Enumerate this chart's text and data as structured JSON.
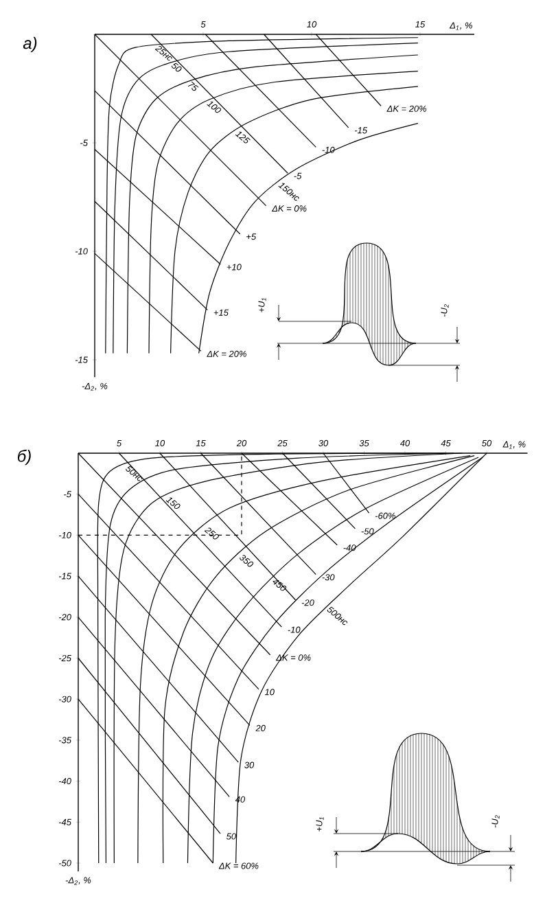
{
  "chart_data": [
    {
      "type": "line",
      "title": "а)",
      "xlabel": "Δ$_{1}$, %",
      "ylabel": "-Δ$_{2}$, %",
      "xlim": [
        0,
        17.5
      ],
      "ylim": [
        -15.8,
        0
      ],
      "xticks": [
        5,
        10,
        15
      ],
      "yticks": [
        -15,
        -10,
        -5
      ],
      "annotations": [
        "+U$_{1}$",
        "-U$_{2}$"
      ],
      "series": [
        {
          "name": "25нс",
          "color": "#000000",
          "x": [
            0.5,
            0.57,
            0.68,
            1.1,
            1.9,
            6.2,
            14.9
          ],
          "values": [
            -14.7,
            -6.8,
            -3.3,
            -1.4,
            -0.6,
            -0.3,
            -0.15
          ]
        },
        {
          "name": "50",
          "color": "#000000",
          "x": [
            0.85,
            0.93,
            1.2,
            1.9,
            3.2,
            6.2,
            14.9
          ],
          "values": [
            -14.7,
            -7.9,
            -3.9,
            -2.2,
            -1.4,
            -0.8,
            -0.4
          ]
        },
        {
          "name": "75",
          "color": "#000000",
          "x": [
            1.5,
            1.6,
            1.9,
            2.8,
            4.5,
            7.4,
            14.9
          ],
          "values": [
            -14.7,
            -7.9,
            -4.7,
            -3.0,
            -2.1,
            -1.5,
            -0.95
          ]
        },
        {
          "name": "100",
          "color": "#000000",
          "x": [
            2.5,
            2.6,
            2.9,
            3.8,
            5.3,
            8.3,
            14.9
          ],
          "values": [
            -14.7,
            -8.9,
            -6.0,
            -4.1,
            -3.0,
            -2.2,
            -1.7
          ]
        },
        {
          "name": "125",
          "color": "#000000",
          "x": [
            3.5,
            3.7,
            4.3,
            5.3,
            7.0,
            10.0,
            14.9
          ],
          "values": [
            -14.7,
            -10.0,
            -7.3,
            -5.4,
            -4.1,
            -3.0,
            -2.4
          ]
        },
        {
          "name": "150нс",
          "color": "#000000",
          "x": [
            4.8,
            5.3,
            6.2,
            7.4,
            9.3,
            12.1,
            14.9
          ],
          "values": [
            -14.7,
            -11.9,
            -9.6,
            -7.7,
            -6.2,
            -4.9,
            -4.1
          ]
        },
        {
          "name": "ΔK = 20%",
          "color": "#000000",
          "x": [
            10.2,
            13.2
          ],
          "values": [
            0,
            -3.3
          ]
        },
        {
          "name": "-15",
          "color": "#000000",
          "x": [
            7.8,
            11.7
          ],
          "values": [
            0,
            -4.3
          ]
        },
        {
          "name": "-10",
          "color": "#000000",
          "x": [
            5.1,
            10.2
          ],
          "values": [
            0,
            -5.2
          ]
        },
        {
          "name": "-5",
          "color": "#000000",
          "x": [
            2.6,
            8.9
          ],
          "values": [
            0,
            -6.4
          ]
        },
        {
          "name": "ΔK = 0%",
          "color": "#000000",
          "x": [
            0,
            7.9
          ],
          "values": [
            0,
            -7.9
          ]
        },
        {
          "name": "+5",
          "color": "#000000",
          "x": [
            0,
            6.7
          ],
          "values": [
            -2.6,
            -9.2
          ]
        },
        {
          "name": "+10",
          "color": "#000000",
          "x": [
            0,
            5.8
          ],
          "values": [
            -5.3,
            -10.6
          ]
        },
        {
          "name": "+15",
          "color": "#000000",
          "x": [
            0,
            5.2
          ],
          "values": [
            -7.7,
            -12.7
          ]
        },
        {
          "name": "ΔK = 20%",
          "color": "#000000",
          "x": [
            0,
            4.9
          ],
          "values": [
            -10.1,
            -14.6
          ]
        }
      ]
    },
    {
      "type": "line",
      "title": "б)",
      "xlabel": "Δ$_{1}$, %",
      "ylabel": "-Δ$_{2}$, %",
      "xlim": [
        0,
        55
      ],
      "ylim": [
        -51,
        0
      ],
      "xticks": [
        5,
        10,
        15,
        20,
        25,
        30,
        35,
        40,
        45,
        50
      ],
      "yticks": [
        -50,
        -45,
        -40,
        -35,
        -30,
        -25,
        -20,
        -15,
        -10,
        -5
      ],
      "annotations": [
        "+U$_{1}$",
        "-U$_{2}$"
      ],
      "series": [
        {
          "name": "50нс",
          "color": "#000000",
          "x": [
            2.5,
            2.4,
            2.5,
            3.9,
            9.0,
            24.1,
            45
          ],
          "values": [
            -50,
            -17.3,
            -6.1,
            -2.2,
            -0.6,
            -0.1,
            0
          ]
        },
        {
          "color": "#000000",
          "x": [
            3.4,
            3.3,
            3.9,
            6.2,
            11.8,
            26.9,
            46
          ],
          "values": [
            -50,
            -20.1,
            -8.9,
            -4.5,
            -2.0,
            -0.6,
            0
          ]
        },
        {
          "name": "150",
          "color": "#000000",
          "x": [
            4.4,
            4.5,
            5.6,
            9.0,
            15.7,
            29.7,
            47
          ],
          "values": [
            -50,
            -22.9,
            -11.7,
            -6.1,
            -3.4,
            -1.1,
            0
          ]
        },
        {
          "name": "250",
          "color": "#000000",
          "x": [
            7.3,
            7.6,
            9.0,
            12.3,
            18.5,
            29.7,
            48
          ],
          "values": [
            -50,
            -28.5,
            -18.4,
            -11.7,
            -6.7,
            -3.4,
            -0.3
          ]
        },
        {
          "name": "350",
          "color": "#000000",
          "x": [
            10.4,
            10.6,
            12.9,
            16.8,
            23.0,
            33.1,
            48.5
          ],
          "values": [
            -50,
            -31.3,
            -21.8,
            -15.1,
            -9.5,
            -4.5,
            -0.3
          ]
        },
        {
          "name": "450",
          "color": "#000000",
          "x": [
            13.4,
            14.0,
            16.3,
            20.7,
            26.9,
            35.3,
            49
          ],
          "values": [
            -50,
            -34.1,
            -25.1,
            -18.4,
            -12.3,
            -6.7,
            -0.5
          ]
        },
        {
          "color": "#000000",
          "x": [
            16.5,
            17.1,
            19.6,
            24.1,
            30.3,
            38.1,
            49.5
          ],
          "values": [
            -50,
            -35.8,
            -27.4,
            -20.7,
            -14.5,
            -8.4,
            -0.5
          ]
        },
        {
          "name": "500нс",
          "color": "#000000",
          "x": [
            19.3,
            19.9,
            22.4,
            26.9,
            33.1,
            39.8,
            50
          ],
          "values": [
            -50,
            -37.4,
            -29.1,
            -22.3,
            -16.2,
            -10.1,
            0
          ]
        },
        {
          "name": "-60%",
          "color": "#000000",
          "x": [
            30,
            35.6
          ],
          "values": [
            0,
            -7.3
          ]
        },
        {
          "name": "-50",
          "color": "#000000",
          "x": [
            25,
            33.9
          ],
          "values": [
            0,
            -9.2
          ]
        },
        {
          "name": "-40",
          "color": "#000000",
          "x": [
            20,
            31.7
          ],
          "values": [
            0,
            -11.2
          ]
        },
        {
          "name": "-30",
          "color": "#000000",
          "x": [
            15,
            29.1
          ],
          "values": [
            0,
            -14.8
          ]
        },
        {
          "name": "-20",
          "color": "#000000",
          "x": [
            10,
            26.6
          ],
          "values": [
            0,
            -17.9
          ]
        },
        {
          "name": "-10",
          "color": "#000000",
          "x": [
            5,
            24.9
          ],
          "values": [
            0,
            -21.2
          ]
        },
        {
          "name": "ΔK = 0%",
          "color": "#000000",
          "x": [
            0,
            23.5
          ],
          "values": [
            0,
            -24.6
          ]
        },
        {
          "name": "10",
          "color": "#000000",
          "x": [
            0,
            22.1
          ],
          "values": [
            -5,
            -28.8
          ]
        },
        {
          "name": "20",
          "color": "#000000",
          "x": [
            0,
            21.0
          ],
          "values": [
            -10,
            -33.2
          ]
        },
        {
          "name": "30",
          "color": "#000000",
          "x": [
            0,
            19.6
          ],
          "values": [
            -15,
            -37.7
          ]
        },
        {
          "name": "40",
          "color": "#000000",
          "x": [
            0,
            18.5
          ],
          "values": [
            -20,
            -41.9
          ]
        },
        {
          "name": "50",
          "color": "#000000",
          "x": [
            0,
            17.4
          ],
          "values": [
            -25,
            -46.4
          ]
        },
        {
          "name": "ΔK = 60%",
          "color": "#000000",
          "x": [
            0,
            16.5
          ],
          "values": [
            -30,
            -50
          ]
        },
        {
          "color": "#000000",
          "line_style": "dashed",
          "x": [
            0,
            20,
            20
          ],
          "values": [
            -10,
            -10,
            0
          ]
        }
      ]
    }
  ]
}
